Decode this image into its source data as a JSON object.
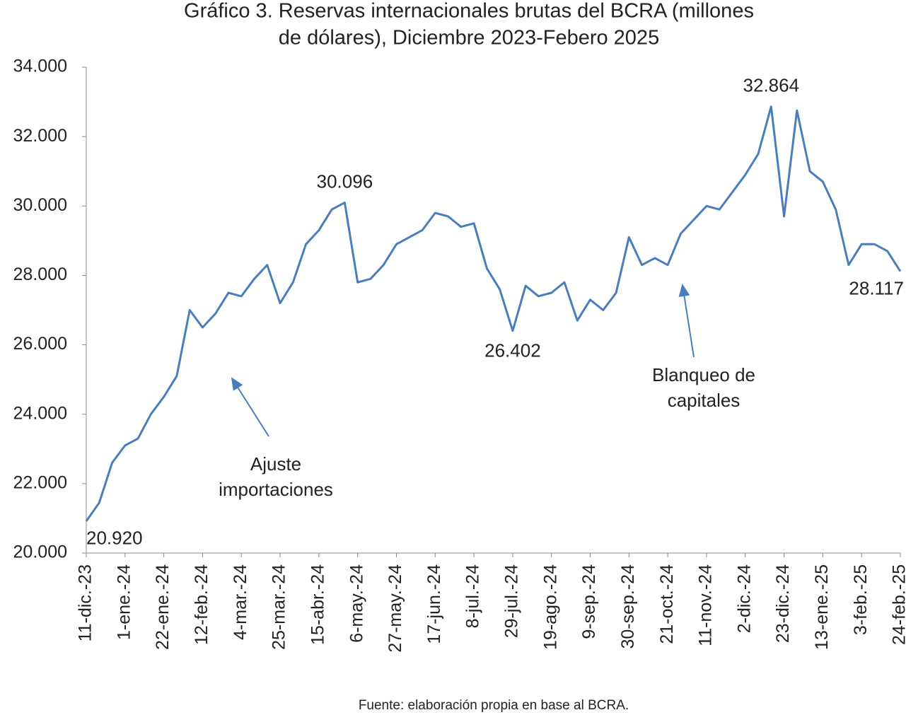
{
  "chart_data": {
    "type": "line",
    "title": "Gráfico 3. Reservas internacionales brutas del BCRA (millones",
    "subtitle": "de dólares), Diciembre 2023-Febero 2025",
    "source": "Fuente: elaboración propia en base al BCRA.",
    "annotations": [
      [
        "Ajuste",
        "importaciones"
      ],
      [
        "Blanqueo de",
        "capitales"
      ]
    ],
    "categories": [
      "11-dic.-23",
      null,
      null,
      "1-ene.-24",
      null,
      null,
      "22-ene.-24",
      null,
      null,
      "12-feb.-24",
      null,
      null,
      "4-mar.-24",
      null,
      null,
      "25-mar.-24",
      null,
      null,
      "15-abr.-24",
      null,
      null,
      "6-may.-24",
      null,
      null,
      "27-may.-24",
      null,
      null,
      "17-jun.-24",
      null,
      null,
      "8-jul.-24",
      null,
      null,
      "29-jul.-24",
      null,
      null,
      "19-ago.-24",
      null,
      null,
      "9-sep.-24",
      null,
      null,
      "30-sep.-24",
      null,
      null,
      "21-oct.-24",
      null,
      null,
      "11-nov.-24",
      null,
      null,
      "2-dic.-24",
      null,
      null,
      "23-dic.-24",
      null,
      null,
      "13-ene.-25",
      null,
      null,
      "3-feb.-25",
      null,
      null,
      "24-feb.-25"
    ],
    "values": [
      20920,
      21450,
      22600,
      23100,
      23300,
      24000,
      24500,
      25100,
      27000,
      26500,
      26900,
      27500,
      27400,
      27900,
      28300,
      27200,
      27800,
      28900,
      29300,
      29900,
      30096,
      27800,
      27900,
      28300,
      28900,
      29100,
      29300,
      29800,
      29700,
      29400,
      29500,
      28200,
      27600,
      26402,
      27700,
      27400,
      27500,
      27800,
      26700,
      27300,
      27000,
      27500,
      29100,
      28300,
      28500,
      28300,
      29200,
      29600,
      30000,
      29900,
      30400,
      30900,
      31500,
      32864,
      29700,
      32750,
      31000,
      30700,
      29900,
      28300,
      28900,
      28900,
      28700,
      28117
    ],
    "value_labels": [
      "20.920",
      null,
      null,
      null,
      null,
      null,
      null,
      null,
      null,
      null,
      null,
      null,
      null,
      null,
      null,
      null,
      null,
      null,
      null,
      null,
      "30.096",
      null,
      null,
      null,
      null,
      null,
      null,
      null,
      null,
      null,
      null,
      null,
      null,
      "26.402",
      null,
      null,
      null,
      null,
      null,
      null,
      null,
      null,
      null,
      null,
      null,
      null,
      null,
      null,
      null,
      null,
      null,
      null,
      null,
      "32.864",
      null,
      null,
      null,
      null,
      null,
      null,
      null,
      null,
      null,
      "28.117"
    ],
    "color": "#4a7ebb",
    "ylim": [
      20000,
      34000
    ],
    "yticks": [
      {
        "value": 20000,
        "label": "20.000"
      },
      {
        "value": 22000,
        "label": "22.000"
      },
      {
        "value": 24000,
        "label": "24.000"
      },
      {
        "value": 26000,
        "label": "26.000"
      },
      {
        "value": 28000,
        "label": "28.000"
      },
      {
        "value": 30000,
        "label": "30.000"
      },
      {
        "value": 32000,
        "label": "32.000"
      },
      {
        "value": 34000,
        "label": "34.000"
      }
    ]
  }
}
